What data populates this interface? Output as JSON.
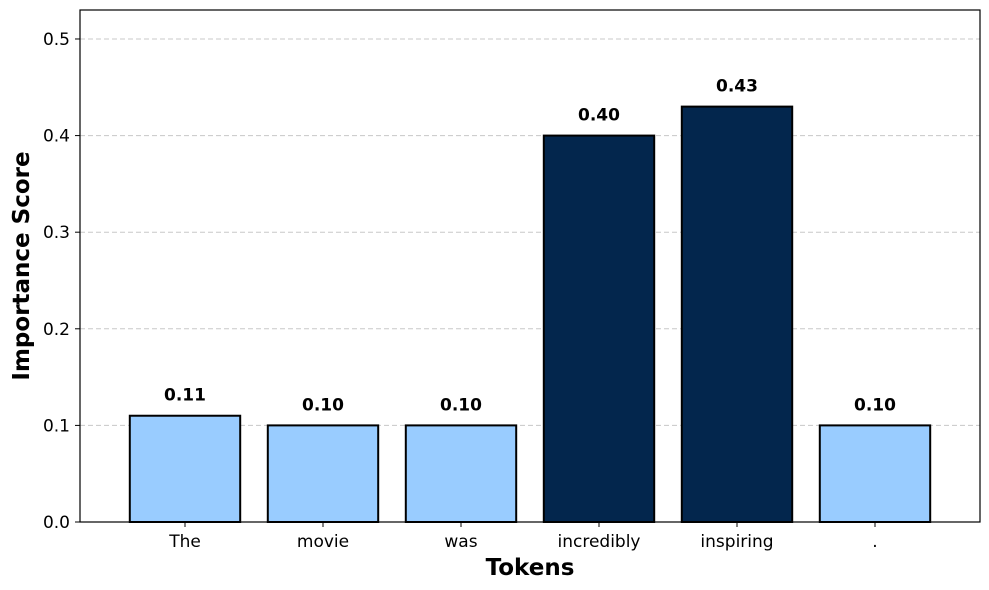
{
  "chart_data": {
    "type": "bar",
    "title": "",
    "xlabel": "Tokens",
    "ylabel": "Importance Score",
    "categories": [
      "The",
      "movie",
      "was",
      "incredibly",
      "inspiring",
      "."
    ],
    "values": [
      0.11,
      0.1,
      0.1,
      0.4,
      0.43,
      0.1
    ],
    "data_labels": [
      "0.11",
      "0.10",
      "0.10",
      "0.40",
      "0.43",
      "0.10"
    ],
    "ylim": [
      0,
      0.53
    ],
    "yticks": [
      0.0,
      0.1,
      0.2,
      0.3,
      0.4,
      0.5
    ],
    "ytick_labels": [
      "0.0",
      "0.1",
      "0.2",
      "0.3",
      "0.4",
      "0.5"
    ],
    "grid": "horizontal-dashed",
    "legend": "none",
    "colors": {
      "low": "#99ccff",
      "high": "#03264d",
      "edge": "#000000",
      "grid": "#c8c8c8"
    },
    "highlighted": [
      false,
      false,
      false,
      true,
      true,
      false
    ]
  }
}
